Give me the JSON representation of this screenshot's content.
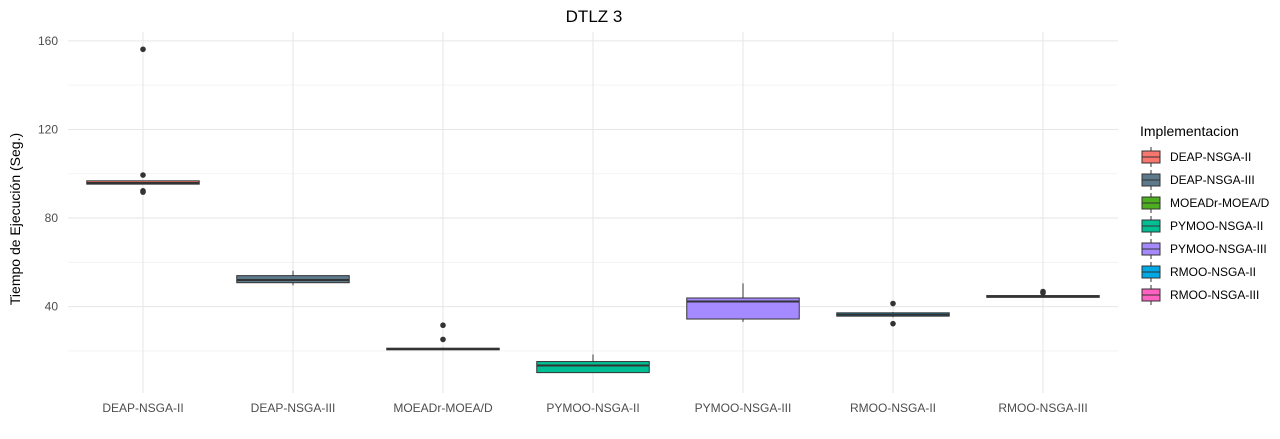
{
  "chart_data": {
    "type": "box",
    "title": "DTLZ 3",
    "xlabel": "",
    "ylabel": "Tiempo de Ejecución (Seg.)",
    "ylim": [
      1,
      164
    ],
    "yticks": [
      40,
      80,
      120,
      160
    ],
    "grid": true,
    "legend_position": "right",
    "legend_title": "Implementacion",
    "categories": [
      "DEAP-NSGA-II",
      "DEAP-NSGA-III",
      "MOEADr-MOEA/D",
      "PYMOO-NSGA-II",
      "PYMOO-NSGA-III",
      "RMOO-NSGA-II",
      "RMOO-NSGA-III"
    ],
    "series": [
      {
        "name": "DEAP-NSGA-II",
        "color": "#F8766D",
        "whisker_low": 95.3,
        "q1": 95.3,
        "median": 95.8,
        "q3": 96.8,
        "whisker_high": 96.9,
        "outliers": [
          156.2,
          99.4,
          92.3,
          91.7
        ]
      },
      {
        "name": "DEAP-NSGA-III",
        "color": "#5D7A8C",
        "whisker_low": 49.6,
        "q1": 50.8,
        "median": 52.0,
        "q3": 54.0,
        "whisker_high": 56.2,
        "outliers": []
      },
      {
        "name": "MOEADr-MOEA/D",
        "color": "#4DAF1F",
        "whisker_low": 20.5,
        "q1": 20.5,
        "median": 20.9,
        "q3": 21.2,
        "whisker_high": 21.5,
        "outliers": [
          31.6,
          25.2
        ]
      },
      {
        "name": "PYMOO-NSGA-II",
        "color": "#00BE94",
        "whisker_low": 10.2,
        "q1": 10.2,
        "median": 13.4,
        "q3": 15.2,
        "whisker_high": 18.4,
        "outliers": []
      },
      {
        "name": "PYMOO-NSGA-III",
        "color": "#A58AFF",
        "whisker_low": 33.1,
        "q1": 34.4,
        "median": 42.3,
        "q3": 43.9,
        "whisker_high": 50.5,
        "outliers": []
      },
      {
        "name": "RMOO-NSGA-II",
        "color": "#00A9E5",
        "whisker_low": 35.2,
        "q1": 35.7,
        "median": 36.4,
        "q3": 37.2,
        "whisker_high": 37.6,
        "outliers": [
          41.4,
          32.3
        ]
      },
      {
        "name": "RMOO-NSGA-III",
        "color": "#FF61C3",
        "whisker_low": 44.2,
        "q1": 44.2,
        "median": 44.5,
        "q3": 45.0,
        "whisker_high": 45.1,
        "outliers": [
          46.2,
          46.8
        ]
      }
    ]
  }
}
